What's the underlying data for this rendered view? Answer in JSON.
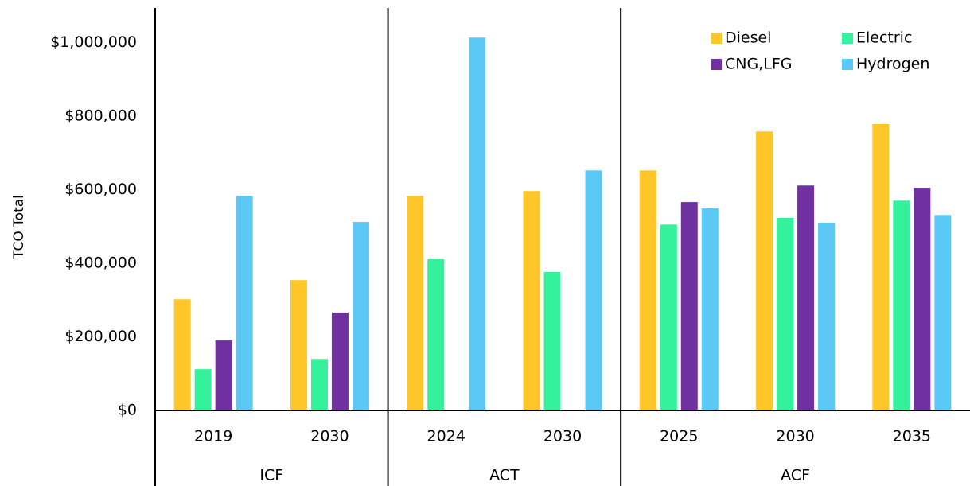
{
  "chart_data": {
    "type": "bar",
    "y_label": "TCO Total",
    "groups": [
      {
        "label": "ICF",
        "categories": [
          "2019",
          "2030"
        ]
      },
      {
        "label": "ACT",
        "categories": [
          "2024",
          "2030"
        ]
      },
      {
        "label": "ACF",
        "categories": [
          "2025",
          "2030",
          "2035"
        ]
      }
    ],
    "series": [
      {
        "name": "Diesel",
        "color": "#FFC629",
        "values": [
          302000,
          354000,
          583000,
          596000,
          652000,
          758000,
          778000
        ]
      },
      {
        "name": "Electric",
        "color": "#33F29B",
        "values": [
          112000,
          140000,
          413000,
          376000,
          505000,
          523000,
          570000
        ]
      },
      {
        "name": "CNG,LFG",
        "color": "#7030A0",
        "values": [
          190000,
          266000,
          null,
          null,
          566000,
          611000,
          605000
        ]
      },
      {
        "name": "Hydrogen",
        "color": "#5BC8F5",
        "values": [
          583000,
          512000,
          1013000,
          652000,
          549000,
          510000,
          531000
        ]
      }
    ],
    "ylim": [
      0,
      1100000
    ],
    "yticks": [
      {
        "value": 0,
        "label": "$0"
      },
      {
        "value": 200000,
        "label": "$200,000"
      },
      {
        "value": 400000,
        "label": "$400,000"
      },
      {
        "value": 600000,
        "label": "$600,000"
      },
      {
        "value": 800000,
        "label": "$800,000"
      },
      {
        "value": 1000000,
        "label": "$1,000,000"
      }
    ],
    "legend": "upper right"
  }
}
